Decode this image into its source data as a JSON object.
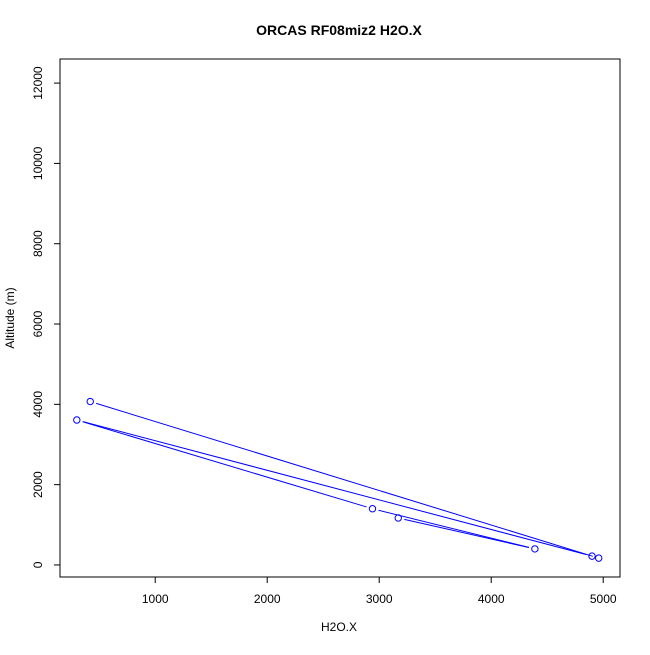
{
  "chart_data": {
    "type": "line",
    "title": "ORCAS RF08miz2 H2O.X",
    "xlabel": "H2O.X",
    "ylabel": "Altitude (m)",
    "xlim": [
      150,
      5150
    ],
    "ylim": [
      -300,
      12600
    ],
    "x_ticks": [
      1000,
      2000,
      3000,
      4000,
      5000
    ],
    "y_ticks": [
      0,
      2000,
      4000,
      6000,
      8000,
      10000,
      12000
    ],
    "x_tick_labels": [
      "1000",
      "2000",
      "3000",
      "4000",
      "5000"
    ],
    "y_tick_labels": [
      "0",
      "2000",
      "4000",
      "6000",
      "8000",
      "10000",
      "12000"
    ],
    "grid": false,
    "legend": "none",
    "series": [
      {
        "color": "#0000ff",
        "marker": "open-circle",
        "points": [
          {
            "x": 420,
            "y": 4070
          },
          {
            "x": 4960,
            "y": 170
          },
          {
            "x": 4900,
            "y": 220
          },
          {
            "x": 300,
            "y": 3610
          },
          {
            "x": 2940,
            "y": 1400
          },
          {
            "x": 4390,
            "y": 400
          },
          {
            "x": 3170,
            "y": 1170
          }
        ]
      }
    ]
  }
}
